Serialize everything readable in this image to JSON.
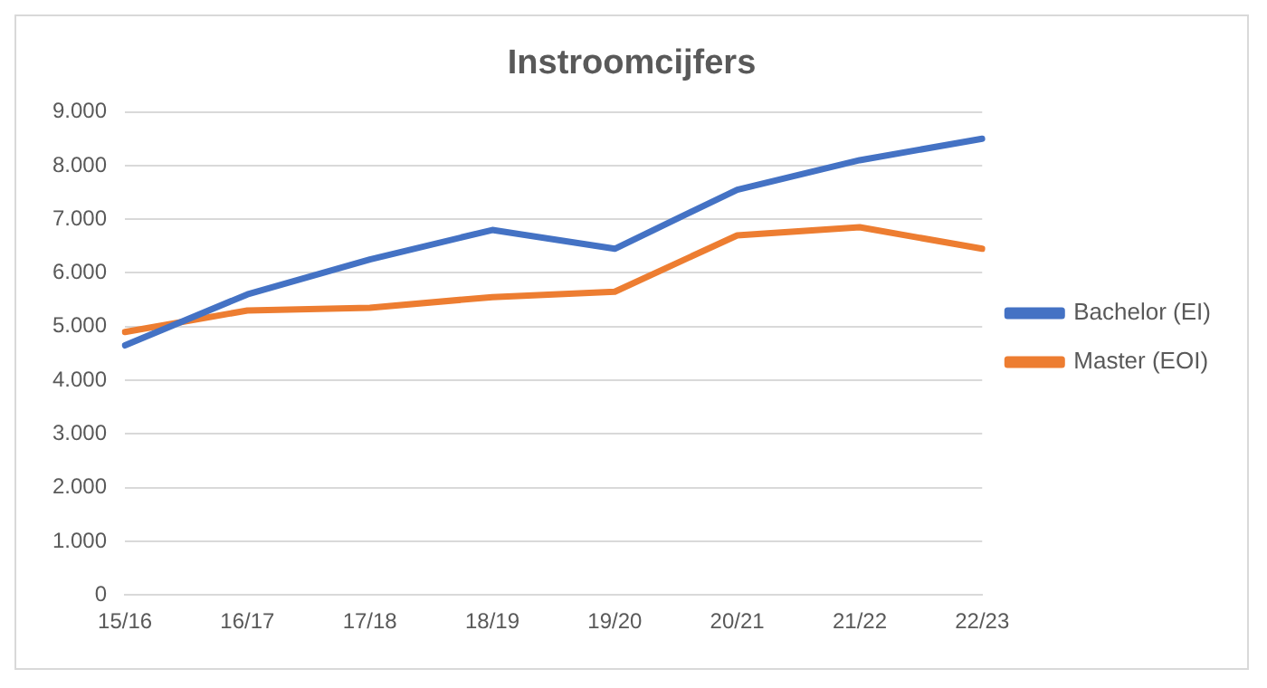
{
  "chart_data": {
    "type": "line",
    "title": "Instroomcijfers",
    "categories": [
      "15/16",
      "16/17",
      "17/18",
      "18/19",
      "19/20",
      "20/21",
      "21/22",
      "22/23"
    ],
    "series": [
      {
        "name": "Bachelor (EI)",
        "color": "#4472c4",
        "values": [
          4650,
          5600,
          6250,
          6800,
          6450,
          7550,
          8100,
          8500
        ]
      },
      {
        "name": "Master (EOI)",
        "color": "#ed7d31",
        "values": [
          4900,
          5300,
          5350,
          5550,
          5650,
          6700,
          6850,
          6450
        ]
      }
    ],
    "ylim": [
      0,
      9000
    ],
    "yticks": [
      {
        "value": 0,
        "label": "0"
      },
      {
        "value": 1000,
        "label": "1.000"
      },
      {
        "value": 2000,
        "label": "2.000"
      },
      {
        "value": 3000,
        "label": "3.000"
      },
      {
        "value": 4000,
        "label": "4.000"
      },
      {
        "value": 5000,
        "label": "5.000"
      },
      {
        "value": 6000,
        "label": "6.000"
      },
      {
        "value": 7000,
        "label": "7.000"
      },
      {
        "value": 8000,
        "label": "8.000"
      },
      {
        "value": 9000,
        "label": "9.000"
      }
    ],
    "grid": "y",
    "legend": "right",
    "marker": "none",
    "line_style": "solid"
  }
}
